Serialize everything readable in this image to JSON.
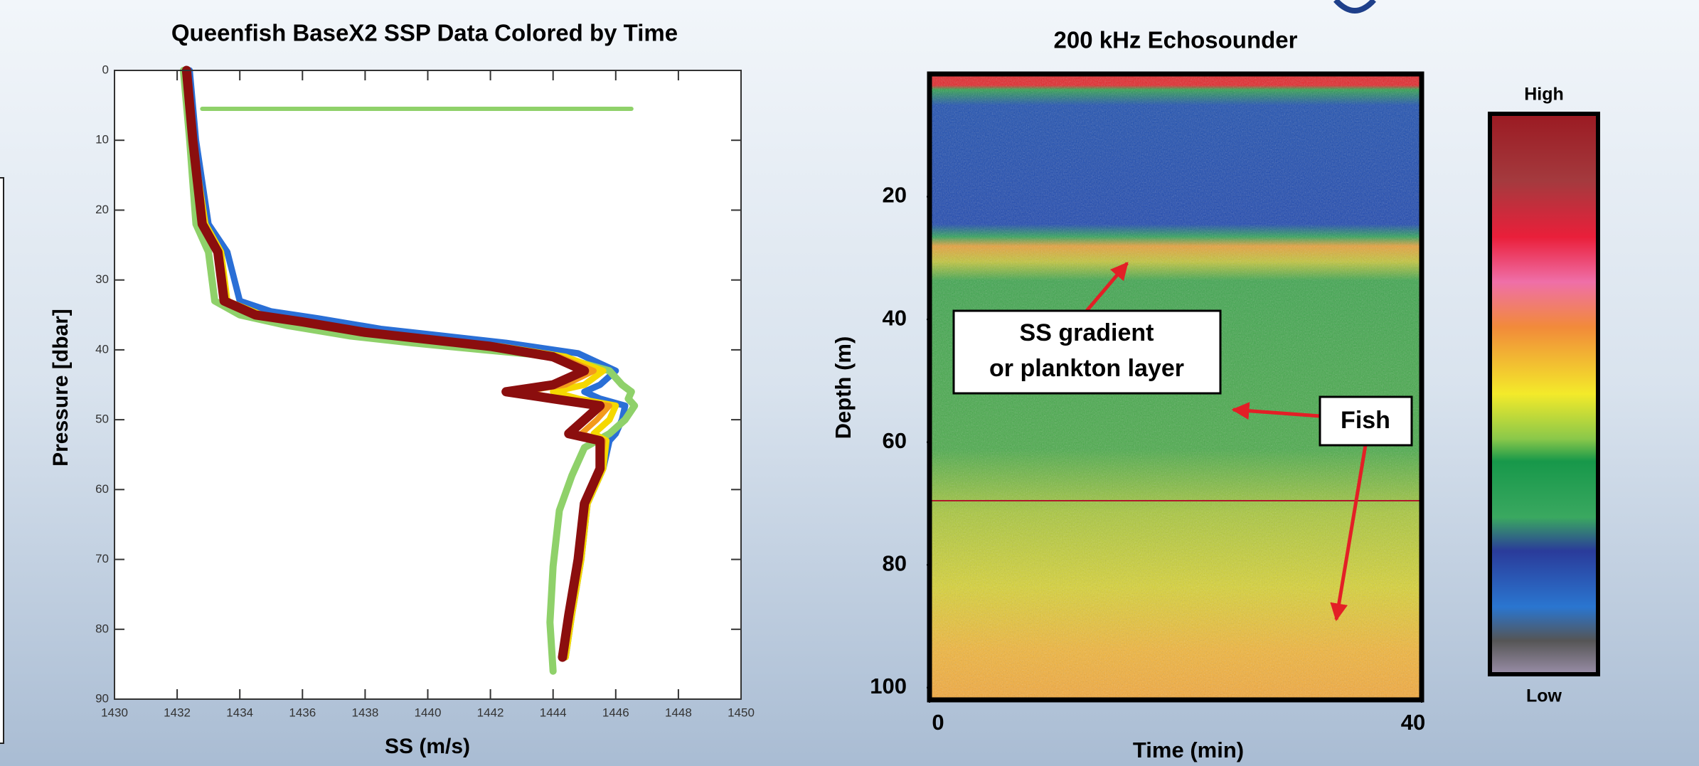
{
  "chart_data": [
    {
      "type": "line",
      "title": "Queenfish BaseX2 SSP Data Colored by Time",
      "xlabel": "SS (m/s)",
      "ylabel": "Pressure [dbar]",
      "xlim": [
        1430,
        1450
      ],
      "ylim": [
        0,
        90
      ],
      "y_inverted": true,
      "xticks": [
        1430,
        1432,
        1434,
        1436,
        1438,
        1440,
        1442,
        1444,
        1446,
        1448,
        1450
      ],
      "yticks": [
        0,
        10,
        20,
        30,
        40,
        50,
        60,
        70,
        80,
        90
      ],
      "series": [
        {
          "color": "#2a6fd6",
          "width": 9,
          "x": [
            1432.4,
            1432.6,
            1433,
            1433.6,
            1434,
            1435,
            1436.5,
            1438.5,
            1440.5,
            1442.5,
            1444.8,
            1446,
            1445.5,
            1445,
            1445.5,
            1446.3,
            1446.2,
            1446,
            1445.8,
            1445.6,
            1445.1,
            1444.9,
            1444.6,
            1444.4
          ],
          "values": [
            0,
            10,
            22,
            26,
            33,
            34.5,
            35.5,
            37,
            38,
            39,
            40.5,
            43,
            45,
            46,
            47,
            48,
            50,
            52,
            53,
            57,
            62,
            70,
            78,
            84
          ]
        },
        {
          "color": "#8fd16a",
          "width": 10,
          "x": [
            1432.2,
            1432.4,
            1432.6,
            1433,
            1433.2,
            1434,
            1435.5,
            1437.5,
            1439.5,
            1441.8,
            1444.2,
            1445.8,
            1446.2,
            1446.5,
            1446.4,
            1446.6,
            1446.3,
            1445.8,
            1445,
            1444.6,
            1444.2,
            1444,
            1443.9,
            1444
          ],
          "values": [
            0,
            10,
            22,
            26,
            33,
            35,
            36.5,
            38,
            39,
            40,
            41,
            43,
            45,
            46,
            47,
            48,
            50,
            52,
            54,
            58,
            63,
            71,
            79,
            86
          ]
        },
        {
          "color": "#f5d800",
          "width": 9,
          "x": [
            1432.3,
            1432.5,
            1432.9,
            1433.4,
            1433.6,
            1434.7,
            1436.2,
            1438.2,
            1440.3,
            1442.3,
            1444.4,
            1445.6,
            1445,
            1444,
            1444.8,
            1446,
            1445.8,
            1445.3,
            1445.7,
            1445.6,
            1445.1,
            1444.9,
            1444.6,
            1444.4
          ],
          "values": [
            0,
            10,
            22,
            26,
            33,
            35,
            36,
            37.5,
            38.5,
            39.5,
            41,
            43,
            45,
            46,
            47,
            48,
            50,
            52,
            53,
            57,
            62,
            70,
            78,
            84
          ]
        },
        {
          "color": "#f39a1c",
          "width": 8,
          "x": [
            1432.3,
            1432.5,
            1432.8,
            1433.3,
            1433.5,
            1434.5,
            1436,
            1438,
            1440,
            1442,
            1444.2,
            1445.3,
            1444.4,
            1443,
            1444.3,
            1445.8,
            1445.4,
            1444.9,
            1445.6,
            1445.5,
            1445,
            1444.8,
            1444.5,
            1444.3
          ],
          "values": [
            0,
            10,
            22,
            26,
            33,
            35,
            36,
            37.5,
            38.5,
            39.5,
            41,
            43,
            45,
            46,
            47,
            48,
            50,
            52,
            53,
            57,
            62,
            70,
            78,
            84
          ]
        },
        {
          "color": "#8b0e0e",
          "width": 13,
          "x": [
            1432.3,
            1432.5,
            1432.8,
            1433.3,
            1433.5,
            1434.5,
            1436,
            1438,
            1440,
            1442,
            1444,
            1445,
            1444,
            1442.5,
            1444,
            1445.5,
            1445,
            1444.5,
            1445.5,
            1445.5,
            1445,
            1444.8,
            1444.5,
            1444.3
          ],
          "values": [
            0,
            10,
            22,
            26,
            33,
            35,
            36,
            37.5,
            38.5,
            39.5,
            41,
            43,
            45,
            46,
            47,
            48,
            50,
            52,
            53,
            57,
            62,
            70,
            78,
            84
          ]
        },
        {
          "color": "#8fd16a",
          "width": 6,
          "x": [
            1432.8,
            1446.5
          ],
          "values": [
            5.5,
            5.5
          ]
        }
      ]
    },
    {
      "type": "image",
      "title": "200 kHz Echosounder",
      "xlabel": "Time (min)",
      "ylabel": "Depth (m)",
      "xlim": [
        0,
        40
      ],
      "ylim": [
        0,
        102
      ],
      "y_inverted": true,
      "xticks": [
        0,
        40
      ],
      "yticks": [
        20,
        40,
        60,
        80,
        100
      ],
      "annotations": [
        {
          "text": [
            "SS gradient",
            "or plankton layer"
          ]
        },
        {
          "text": [
            "Fish"
          ]
        }
      ],
      "colorbar": {
        "high": "High",
        "low": "Low"
      }
    }
  ]
}
